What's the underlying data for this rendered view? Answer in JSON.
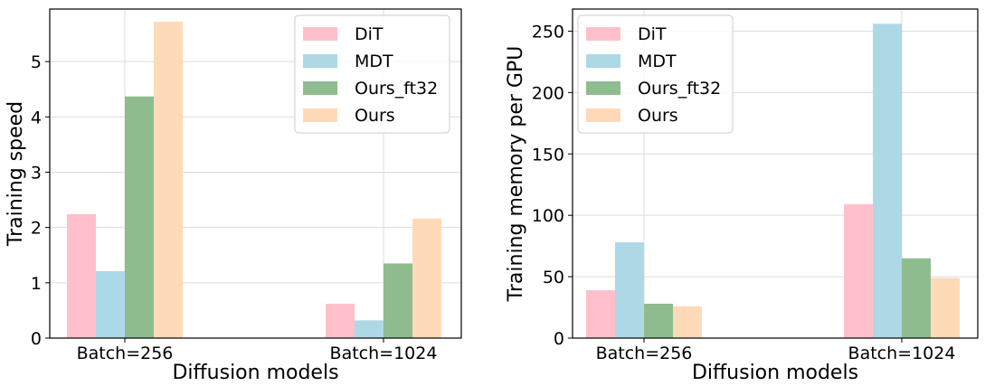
{
  "chart_data": [
    {
      "type": "bar",
      "categories": [
        "Batch=256",
        "Batch=1024"
      ],
      "series": [
        {
          "name": "DiT",
          "values": [
            2.24,
            0.62
          ],
          "color": "#ffc0cb"
        },
        {
          "name": "MDT",
          "values": [
            1.21,
            0.32
          ],
          "color": "#add8e6"
        },
        {
          "name": "Ours_ft32",
          "values": [
            4.37,
            1.35
          ],
          "color": "#8fbc8f"
        },
        {
          "name": "Ours",
          "values": [
            5.72,
            2.16
          ],
          "color": "#ffdab9"
        }
      ],
      "xlabel": "Diffusion models",
      "ylabel": "Training speed",
      "ylim": [
        0,
        5.95
      ],
      "yticks": [
        0,
        1,
        2,
        3,
        4,
        5
      ],
      "grid": true,
      "legend": "top-right"
    },
    {
      "type": "bar",
      "categories": [
        "Batch=256",
        "Batch=1024"
      ],
      "series": [
        {
          "name": "DiT",
          "values": [
            39,
            109
          ],
          "color": "#ffc0cb"
        },
        {
          "name": "MDT",
          "values": [
            78,
            256
          ],
          "color": "#add8e6"
        },
        {
          "name": "Ours_ft32",
          "values": [
            28,
            65
          ],
          "color": "#8fbc8f"
        },
        {
          "name": "Ours",
          "values": [
            26,
            49
          ],
          "color": "#ffdab9"
        }
      ],
      "xlabel": "Diffusion models",
      "ylabel": "Training memory per GPU",
      "ylim": [
        0,
        268
      ],
      "yticks": [
        0,
        50,
        100,
        150,
        200,
        250
      ],
      "grid": true,
      "legend": "top-left"
    }
  ]
}
